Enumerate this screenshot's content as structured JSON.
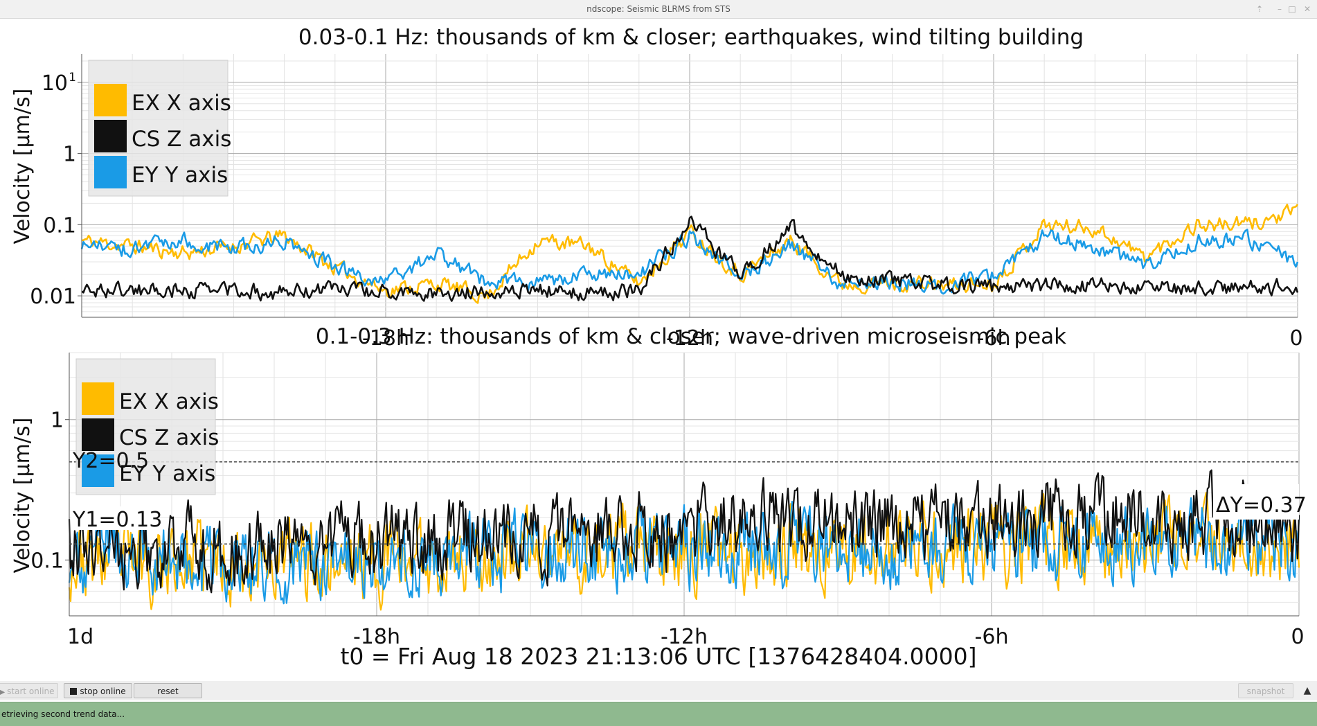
{
  "window": {
    "title": "ndscope: Seismic BLRMS from STS"
  },
  "plots": [
    {
      "title": "0.03-0.1 Hz: thousands of km & closer; earthquakes, wind tilting building",
      "ylabel": "Velocity [µm/s]",
      "yticks": [
        {
          "value": 0.01,
          "label": "0.01"
        },
        {
          "value": 0.1,
          "label": "0.1"
        },
        {
          "value": 1,
          "label": "1"
        },
        {
          "value": 10,
          "label": "10",
          "superscript": "1"
        }
      ],
      "xticks": [
        {
          "value": -18,
          "label": "-18h"
        },
        {
          "value": -12,
          "label": "-12h"
        },
        {
          "value": -6,
          "label": "-6h"
        },
        {
          "value": 0,
          "label": "0"
        }
      ],
      "legend": [
        {
          "label": "EX X axis",
          "color": "#ffbb00"
        },
        {
          "label": "CS Z axis",
          "color": "#111111"
        },
        {
          "label": "EY Y axis",
          "color": "#1a9be6"
        }
      ]
    },
    {
      "title": "0.1-0.3 Hz: thousands of km & closer; wave-driven microseismic peak",
      "ylabel": "Velocity [µm/s]",
      "yticks": [
        {
          "value": 0.1,
          "label": "0.1"
        },
        {
          "value": 1,
          "label": "1"
        }
      ],
      "xticks": [
        {
          "value": -24,
          "label": "1d"
        },
        {
          "value": -18,
          "label": "-18h"
        },
        {
          "value": -12,
          "label": "-12h"
        },
        {
          "value": -6,
          "label": "-6h"
        },
        {
          "value": 0,
          "label": "0"
        }
      ],
      "legend": [
        {
          "label": "EX X axis",
          "color": "#ffbb00"
        },
        {
          "label": "CS Z axis",
          "color": "#111111"
        },
        {
          "label": "EY Y axis",
          "color": "#1a9be6"
        }
      ],
      "cursors": {
        "y1_label": "Y1=0.13",
        "y2_label": "Y2=0.5",
        "dy_label": "ΔY=0.37"
      }
    }
  ],
  "t0_label": "t0 = Fri Aug 18 2023 21:13:06 UTC [1376428404.0000]",
  "controls": {
    "start_online": "start online",
    "stop_online": "stop online",
    "reset": "reset",
    "snapshot": "snapshot"
  },
  "status": "etrieving second trend data...",
  "chart_data": [
    {
      "type": "line",
      "title": "0.03-0.1 Hz: thousands of km & closer; earthquakes, wind tilting building",
      "xlabel": "",
      "ylabel": "Velocity [µm/s]",
      "x_unit": "hours relative to t0",
      "xlim": [
        -24,
        0
      ],
      "ylim": [
        0.005,
        25
      ],
      "yscale": "log",
      "grid": true,
      "legend_position": "top-left",
      "x": [
        -24,
        -23,
        -22,
        -21,
        -20,
        -19,
        -18,
        -17,
        -16,
        -15,
        -14,
        -13,
        -12,
        -11,
        -10,
        -9,
        -8,
        -7,
        -6,
        -5,
        -4,
        -3,
        -2,
        -1,
        0
      ],
      "series": [
        {
          "name": "EX X axis",
          "color": "#ffbb00",
          "values": [
            0.06,
            0.05,
            0.04,
            0.05,
            0.07,
            0.025,
            0.012,
            0.015,
            0.01,
            0.06,
            0.05,
            0.015,
            0.08,
            0.02,
            0.06,
            0.015,
            0.015,
            0.014,
            0.015,
            0.1,
            0.09,
            0.035,
            0.1,
            0.1,
            0.15
          ]
        },
        {
          "name": "CS Z axis",
          "color": "#111111",
          "values": [
            0.012,
            0.012,
            0.012,
            0.012,
            0.011,
            0.013,
            0.011,
            0.011,
            0.012,
            0.012,
            0.011,
            0.012,
            0.11,
            0.02,
            0.09,
            0.02,
            0.016,
            0.014,
            0.013,
            0.014,
            0.014,
            0.013,
            0.013,
            0.013,
            0.014
          ]
        },
        {
          "name": "EY Y axis",
          "color": "#1a9be6",
          "values": [
            0.05,
            0.045,
            0.06,
            0.045,
            0.06,
            0.025,
            0.015,
            0.04,
            0.015,
            0.015,
            0.02,
            0.02,
            0.07,
            0.02,
            0.05,
            0.015,
            0.015,
            0.014,
            0.02,
            0.07,
            0.05,
            0.025,
            0.06,
            0.06,
            0.03
          ]
        }
      ]
    },
    {
      "type": "line",
      "title": "0.1-0.3 Hz: thousands of km & closer; wave-driven microseismic peak",
      "xlabel": "",
      "ylabel": "Velocity [µm/s]",
      "x_unit": "hours relative to t0",
      "xlim": [
        -24,
        0
      ],
      "ylim": [
        0.04,
        3
      ],
      "yscale": "log",
      "grid": true,
      "legend_position": "top-left",
      "x": [
        -24,
        -22,
        -20,
        -18,
        -16,
        -14,
        -12,
        -10,
        -8,
        -6,
        -4,
        -2,
        0
      ],
      "series": [
        {
          "name": "EX X axis",
          "color": "#ffbb00",
          "values": [
            0.1,
            0.1,
            0.1,
            0.1,
            0.11,
            0.11,
            0.12,
            0.12,
            0.12,
            0.13,
            0.13,
            0.13,
            0.13
          ]
        },
        {
          "name": "CS Z axis",
          "color": "#111111",
          "values": [
            0.12,
            0.12,
            0.13,
            0.13,
            0.14,
            0.15,
            0.17,
            0.18,
            0.18,
            0.19,
            0.2,
            0.2,
            0.16
          ]
        },
        {
          "name": "EY Y axis",
          "color": "#1a9be6",
          "values": [
            0.1,
            0.1,
            0.1,
            0.1,
            0.11,
            0.11,
            0.12,
            0.12,
            0.12,
            0.12,
            0.13,
            0.13,
            0.13
          ]
        }
      ],
      "cursors": {
        "y1": 0.13,
        "y2": 0.5,
        "delta_y": 0.37
      }
    }
  ]
}
